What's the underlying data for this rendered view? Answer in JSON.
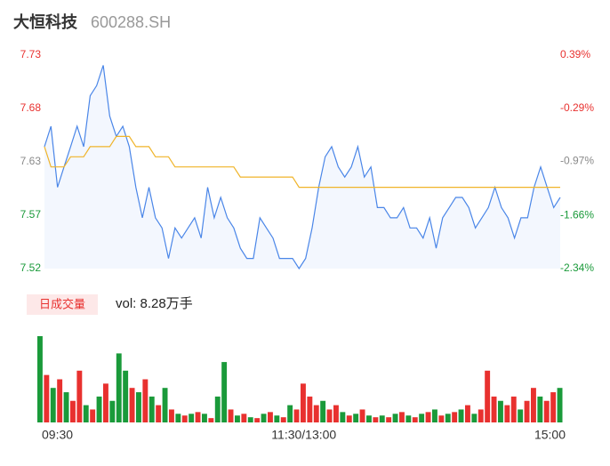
{
  "header": {
    "name": "大恒科技",
    "code": "600288.SH"
  },
  "chart_data": [
    {
      "type": "line",
      "xlim": [
        0,
        79
      ],
      "ylim": [
        7.52,
        7.73
      ],
      "yticks": [
        {
          "value": 7.52,
          "label": "7.52"
        },
        {
          "value": 7.5725,
          "label": "7.57"
        },
        {
          "value": 7.625,
          "label": "7.63"
        },
        {
          "value": 7.6775,
          "label": "7.68"
        },
        {
          "value": 7.73,
          "label": "7.73"
        }
      ],
      "y2lim": [
        -2.34,
        0.39
      ],
      "y2ticks": [
        {
          "value": -2.34,
          "label": "-2.34%"
        },
        {
          "value": -1.66,
          "label": "-1.66%"
        },
        {
          "value": -0.97,
          "label": "-0.97%"
        },
        {
          "value": -0.29,
          "label": "-0.29%"
        },
        {
          "value": 0.39,
          "label": "0.39%"
        }
      ],
      "tick_colors": [
        "#1a9a3a",
        "#1a9a3a",
        "#8a8a8a",
        "#e8312f",
        "#e8312f"
      ],
      "series": [
        {
          "name": "price",
          "color": "#4a86e8",
          "values": [
            7.64,
            7.66,
            7.6,
            7.62,
            7.64,
            7.66,
            7.64,
            7.69,
            7.7,
            7.72,
            7.67,
            7.65,
            7.66,
            7.64,
            7.6,
            7.57,
            7.6,
            7.57,
            7.56,
            7.53,
            7.56,
            7.55,
            7.56,
            7.57,
            7.55,
            7.6,
            7.57,
            7.59,
            7.57,
            7.56,
            7.54,
            7.53,
            7.53,
            7.57,
            7.56,
            7.55,
            7.53,
            7.53,
            7.53,
            7.52,
            7.53,
            7.56,
            7.6,
            7.63,
            7.64,
            7.62,
            7.61,
            7.62,
            7.64,
            7.61,
            7.62,
            7.58,
            7.58,
            7.57,
            7.57,
            7.58,
            7.56,
            7.56,
            7.55,
            7.57,
            7.54,
            7.57,
            7.58,
            7.59,
            7.59,
            7.58,
            7.56,
            7.57,
            7.58,
            7.6,
            7.58,
            7.57,
            7.55,
            7.57,
            7.57,
            7.6,
            7.62,
            7.6,
            7.58,
            7.59
          ]
        },
        {
          "name": "average",
          "color": "#f0b429",
          "values": [
            7.64,
            7.62,
            7.62,
            7.62,
            7.63,
            7.63,
            7.63,
            7.64,
            7.64,
            7.64,
            7.64,
            7.65,
            7.65,
            7.65,
            7.64,
            7.64,
            7.64,
            7.63,
            7.63,
            7.63,
            7.62,
            7.62,
            7.62,
            7.62,
            7.62,
            7.62,
            7.62,
            7.62,
            7.62,
            7.62,
            7.61,
            7.61,
            7.61,
            7.61,
            7.61,
            7.61,
            7.61,
            7.61,
            7.61,
            7.6,
            7.6,
            7.6,
            7.6,
            7.6,
            7.6,
            7.6,
            7.6,
            7.6,
            7.6,
            7.6,
            7.6,
            7.6,
            7.6,
            7.6,
            7.6,
            7.6,
            7.6,
            7.6,
            7.6,
            7.6,
            7.6,
            7.6,
            7.6,
            7.6,
            7.6,
            7.6,
            7.6,
            7.6,
            7.6,
            7.6,
            7.6,
            7.6,
            7.6,
            7.6,
            7.6,
            7.6,
            7.6,
            7.6,
            7.6,
            7.6
          ]
        }
      ]
    },
    {
      "type": "bar",
      "legend_label": "日成交量",
      "volume_text": "vol: 8.28万手",
      "xlim": [
        0,
        79
      ],
      "ylim": [
        0,
        100
      ],
      "xticks": [
        {
          "value": 0,
          "label": "09:30"
        },
        {
          "value": 40,
          "label": "11:30/13:00"
        },
        {
          "value": 79,
          "label": "15:00"
        }
      ],
      "values": [
        100,
        55,
        40,
        50,
        35,
        25,
        60,
        20,
        15,
        30,
        45,
        25,
        80,
        60,
        40,
        35,
        50,
        30,
        20,
        40,
        15,
        10,
        8,
        10,
        12,
        10,
        5,
        30,
        70,
        15,
        8,
        10,
        6,
        5,
        10,
        12,
        8,
        6,
        20,
        15,
        45,
        30,
        20,
        25,
        15,
        20,
        12,
        8,
        10,
        15,
        8,
        6,
        8,
        6,
        10,
        12,
        8,
        6,
        10,
        12,
        15,
        8,
        10,
        12,
        15,
        20,
        10,
        15,
        60,
        30,
        25,
        20,
        30,
        15,
        25,
        40,
        30,
        25,
        35,
        40
      ],
      "colors": [
        "#1a9a3a",
        "#e8312f",
        "#1a9a3a",
        "#e8312f",
        "#1a9a3a",
        "#e8312f",
        "#e8312f",
        "#1a9a3a",
        "#e8312f",
        "#1a9a3a",
        "#e8312f",
        "#1a9a3a",
        "#1a9a3a",
        "#1a9a3a",
        "#e8312f",
        "#1a9a3a",
        "#e8312f",
        "#1a9a3a",
        "#e8312f",
        "#1a9a3a",
        "#e8312f",
        "#1a9a3a",
        "#e8312f",
        "#1a9a3a",
        "#e8312f",
        "#1a9a3a",
        "#e8312f",
        "#1a9a3a",
        "#1a9a3a",
        "#e8312f",
        "#1a9a3a",
        "#e8312f",
        "#1a9a3a",
        "#e8312f",
        "#1a9a3a",
        "#e8312f",
        "#1a9a3a",
        "#e8312f",
        "#1a9a3a",
        "#e8312f",
        "#e8312f",
        "#e8312f",
        "#e8312f",
        "#1a9a3a",
        "#e8312f",
        "#e8312f",
        "#1a9a3a",
        "#e8312f",
        "#1a9a3a",
        "#e8312f",
        "#1a9a3a",
        "#e8312f",
        "#1a9a3a",
        "#e8312f",
        "#1a9a3a",
        "#e8312f",
        "#1a9a3a",
        "#e8312f",
        "#1a9a3a",
        "#e8312f",
        "#1a9a3a",
        "#e8312f",
        "#1a9a3a",
        "#e8312f",
        "#1a9a3a",
        "#e8312f",
        "#1a9a3a",
        "#e8312f",
        "#e8312f",
        "#e8312f",
        "#1a9a3a",
        "#e8312f",
        "#e8312f",
        "#1a9a3a",
        "#e8312f",
        "#e8312f",
        "#1a9a3a",
        "#e8312f",
        "#e8312f",
        "#1a9a3a"
      ]
    }
  ]
}
